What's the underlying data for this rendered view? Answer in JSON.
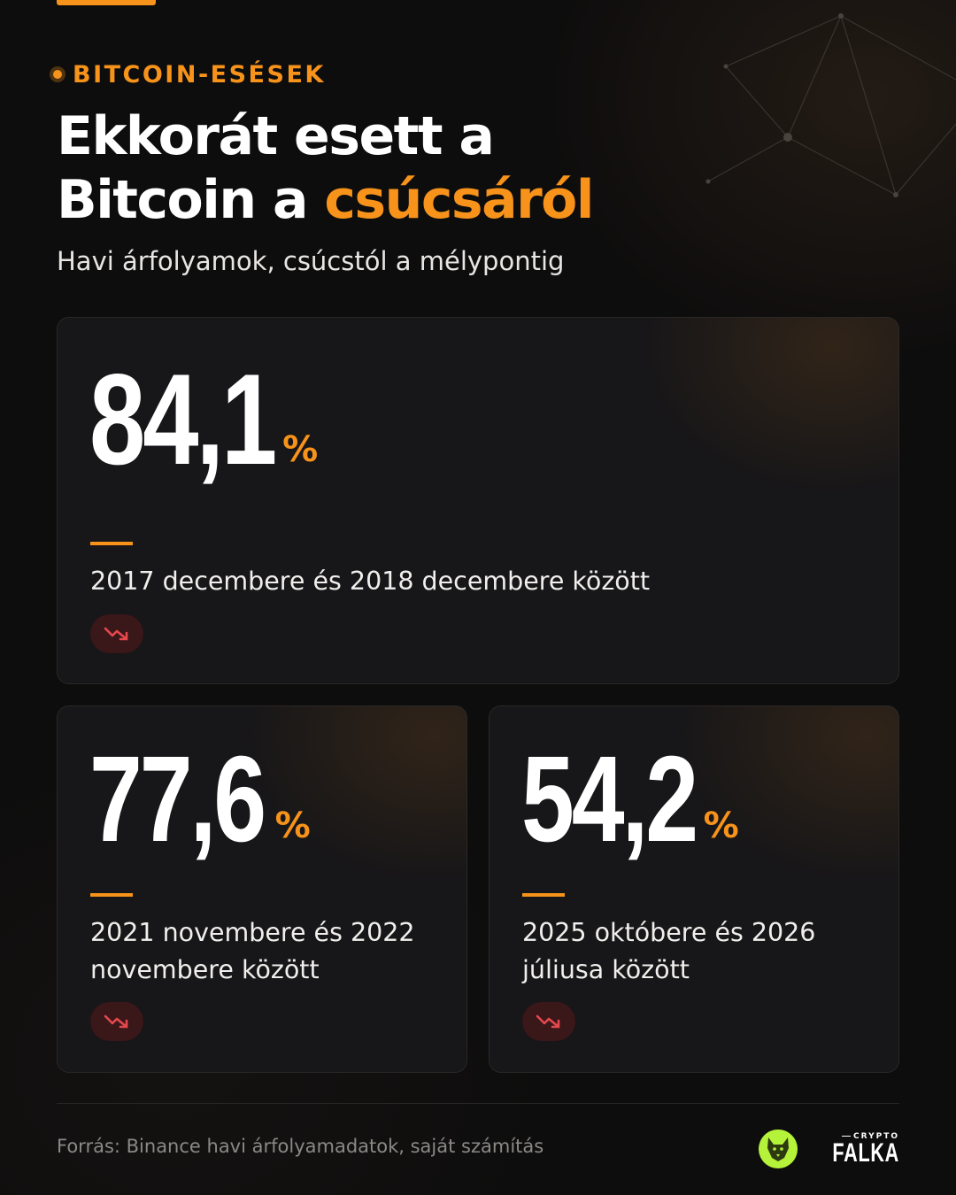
{
  "header": {
    "eyebrow": "BITCOIN-ESÉSEK",
    "title_line1": "Ekkorát esett a",
    "title_line2_plain": "Bitcoin a ",
    "title_line2_accent": "csúcsáról",
    "subtitle": "Havi árfolyamok, csúcstól a mélypontig"
  },
  "drops": [
    {
      "value": "84,1",
      "unit": "%",
      "period": "2017 decembere és 2018 decembere között",
      "trend_icon": "trending-down-icon"
    },
    {
      "value": "77,6",
      "unit": "%",
      "period": "2021 novembere és 2022 novembere között",
      "trend_icon": "trending-down-icon"
    },
    {
      "value": "54,2",
      "unit": "%",
      "period": "2025 októbere és 2026 júliusa között",
      "trend_icon": "trending-down-icon"
    }
  ],
  "footer": {
    "source": "Forrás: Binance havi árfolyamadatok, saját számítás",
    "brand_small": "CRYPTO",
    "brand_name": "FALKA"
  },
  "colors": {
    "accent": "#f7931a",
    "background": "#0e0d0d",
    "card": "#171618",
    "trend_down": "#e5484d",
    "brand_green": "#b5f23a"
  }
}
